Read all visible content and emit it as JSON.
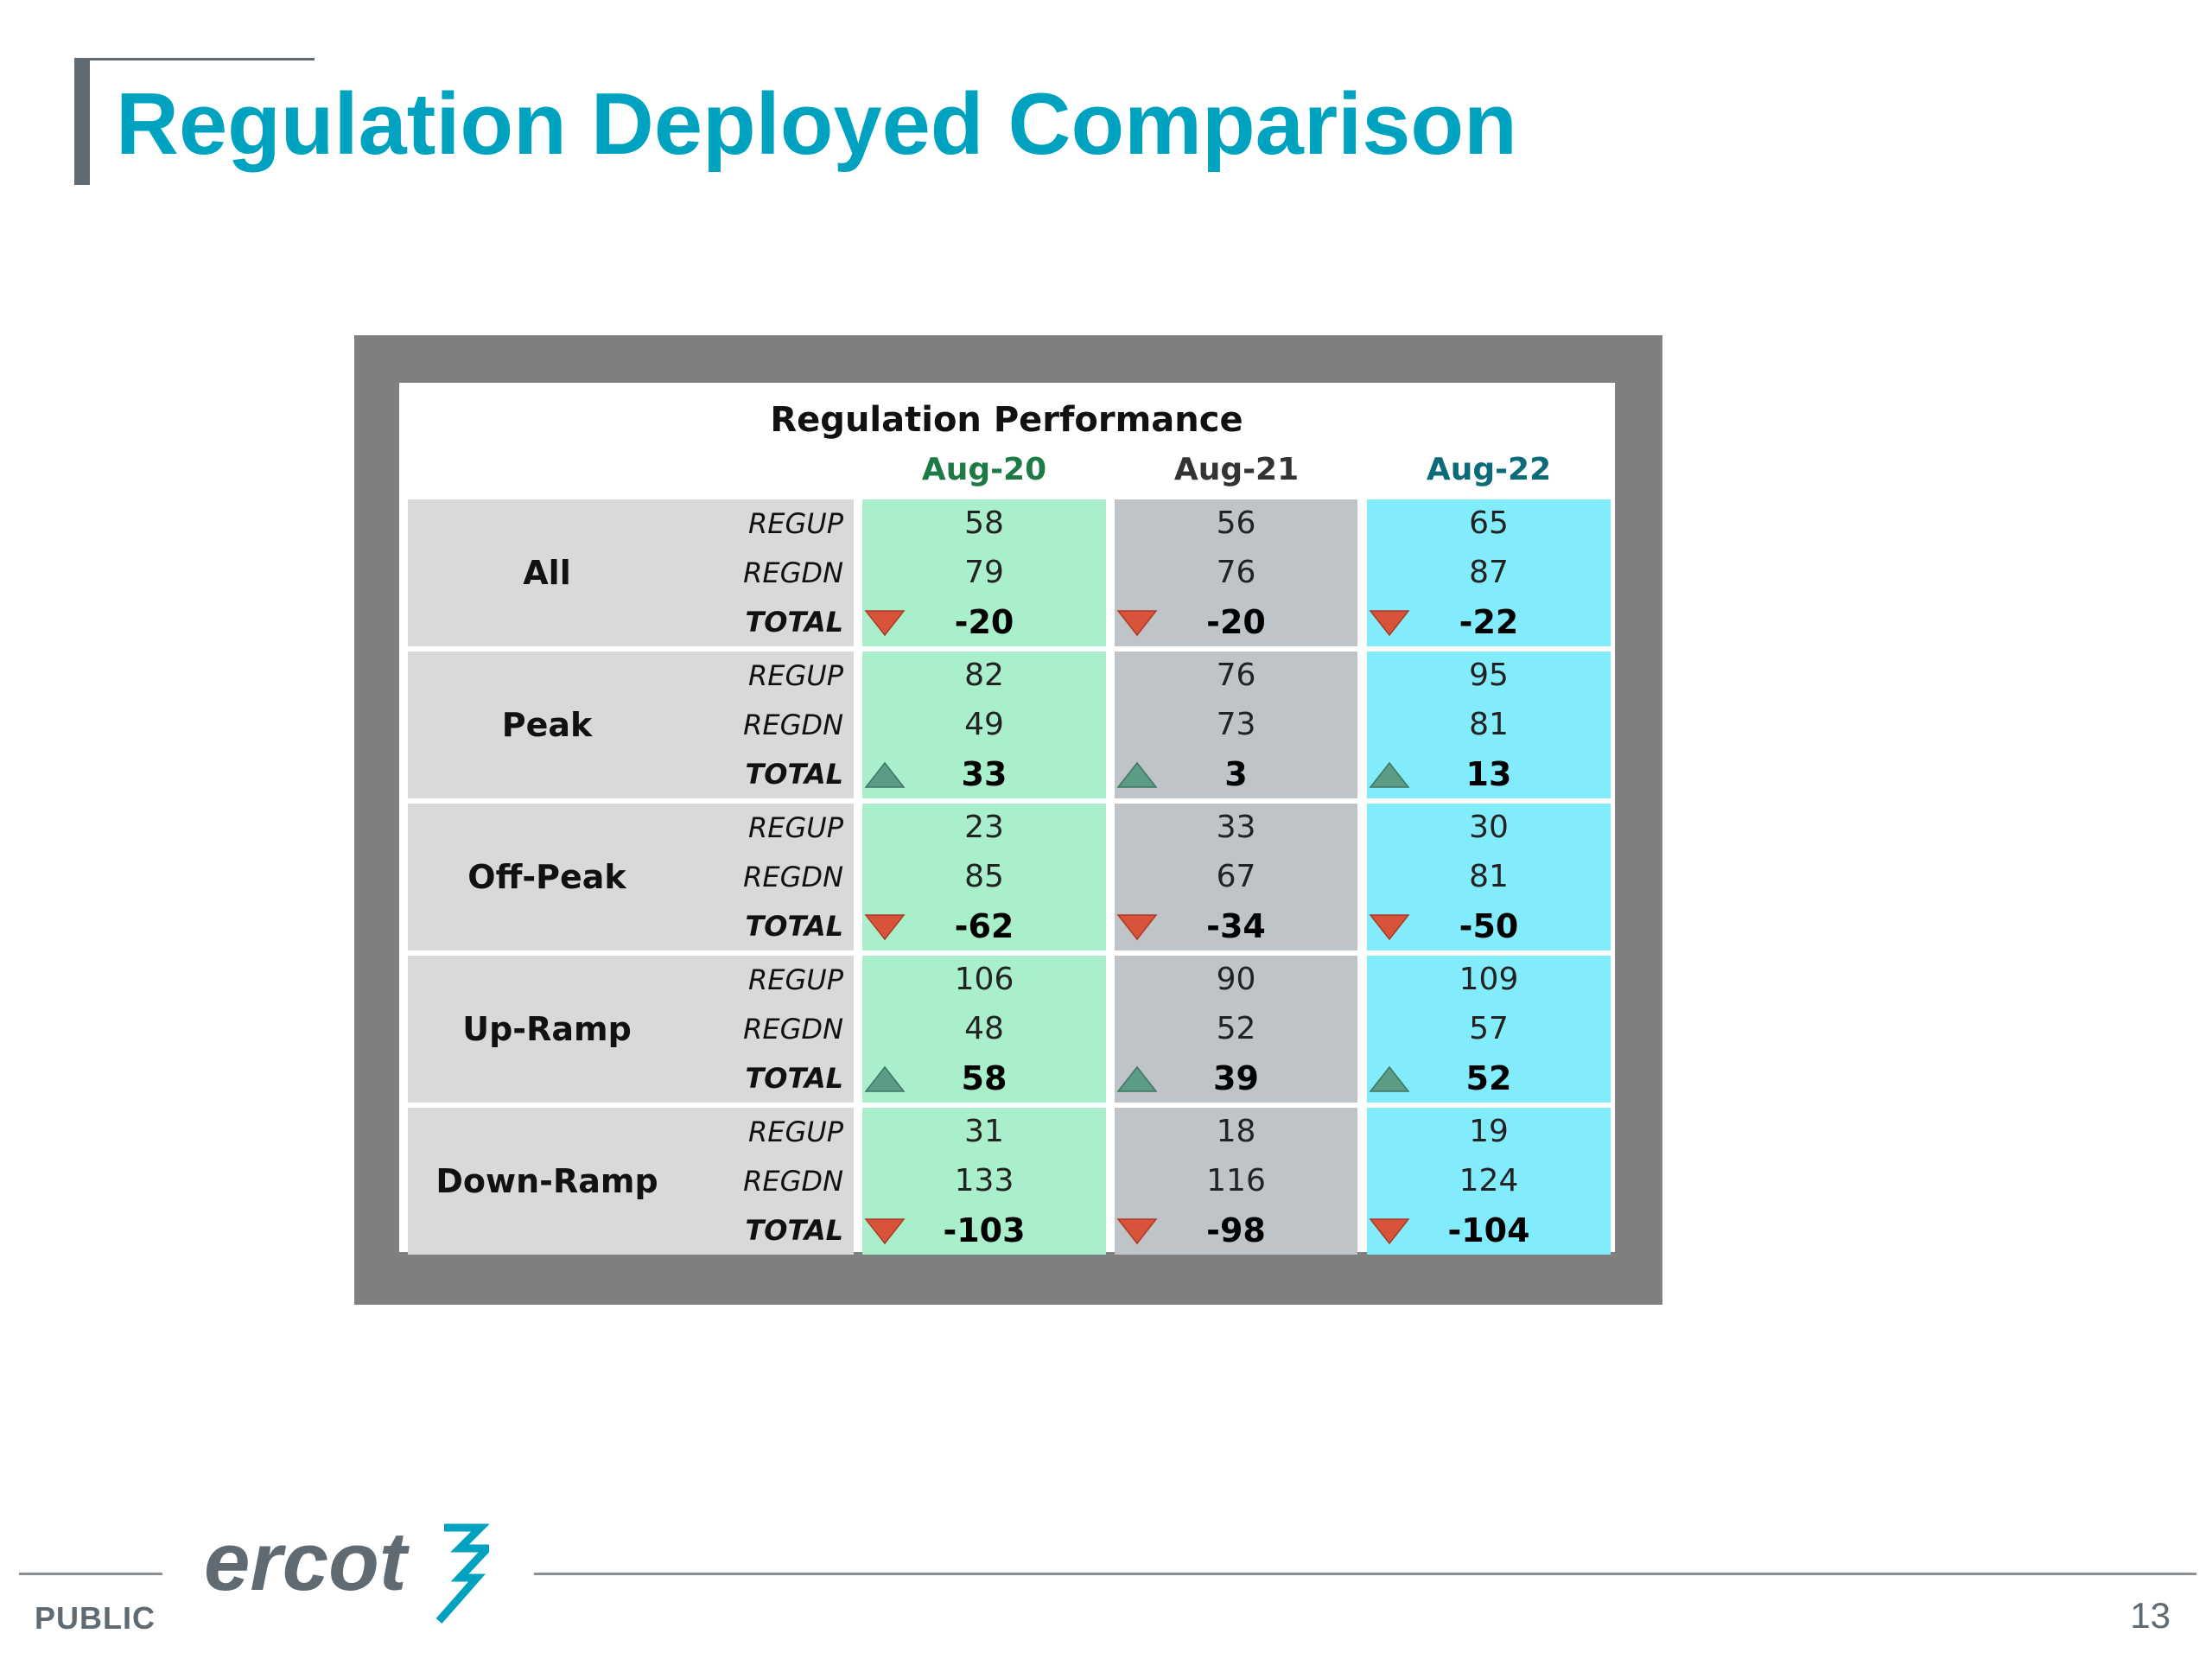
{
  "slide": {
    "title": "Regulation Deployed Comparison",
    "footer_label": "PUBLIC",
    "page_number": "13",
    "logo_text": "ercot"
  },
  "table": {
    "title": "Regulation Performance",
    "columns": [
      "Aug-20",
      "Aug-21",
      "Aug-22"
    ],
    "column_colors": [
      "#1e7a45",
      "#333333",
      "#0b6b79"
    ],
    "fill_colors": [
      "#a9efcb",
      "#bfc4c8",
      "#82ecfd"
    ],
    "row_labels": [
      "REGUP",
      "REGDN",
      "TOTAL"
    ],
    "groups": [
      {
        "name": "All",
        "values": [
          [
            "58",
            "79",
            "-20"
          ],
          [
            "56",
            "76",
            "-20"
          ],
          [
            "65",
            "87",
            "-22"
          ]
        ],
        "trend": [
          "down",
          "down",
          "down"
        ]
      },
      {
        "name": "Peak",
        "values": [
          [
            "82",
            "49",
            "33"
          ],
          [
            "76",
            "73",
            "3"
          ],
          [
            "95",
            "81",
            "13"
          ]
        ],
        "trend": [
          "up",
          "up",
          "up"
        ]
      },
      {
        "name": "Off-Peak",
        "values": [
          [
            "23",
            "85",
            "-62"
          ],
          [
            "33",
            "67",
            "-34"
          ],
          [
            "30",
            "81",
            "-50"
          ]
        ],
        "trend": [
          "down",
          "down",
          "down"
        ]
      },
      {
        "name": "Up-Ramp",
        "values": [
          [
            "106",
            "48",
            "58"
          ],
          [
            "90",
            "52",
            "39"
          ],
          [
            "109",
            "57",
            "52"
          ]
        ],
        "trend": [
          "up",
          "up",
          "up"
        ]
      },
      {
        "name": "Down-Ramp",
        "values": [
          [
            "31",
            "133",
            "-103"
          ],
          [
            "18",
            "116",
            "-98"
          ],
          [
            "19",
            "124",
            "-104"
          ]
        ],
        "trend": [
          "down",
          "down",
          "down"
        ]
      }
    ]
  },
  "icons": {
    "up": "up-triangle-icon",
    "down": "down-triangle-icon"
  },
  "colors": {
    "title": "#00a3bf",
    "down_arrow": "#d9533a",
    "up_arrow": "#5c9c86"
  }
}
